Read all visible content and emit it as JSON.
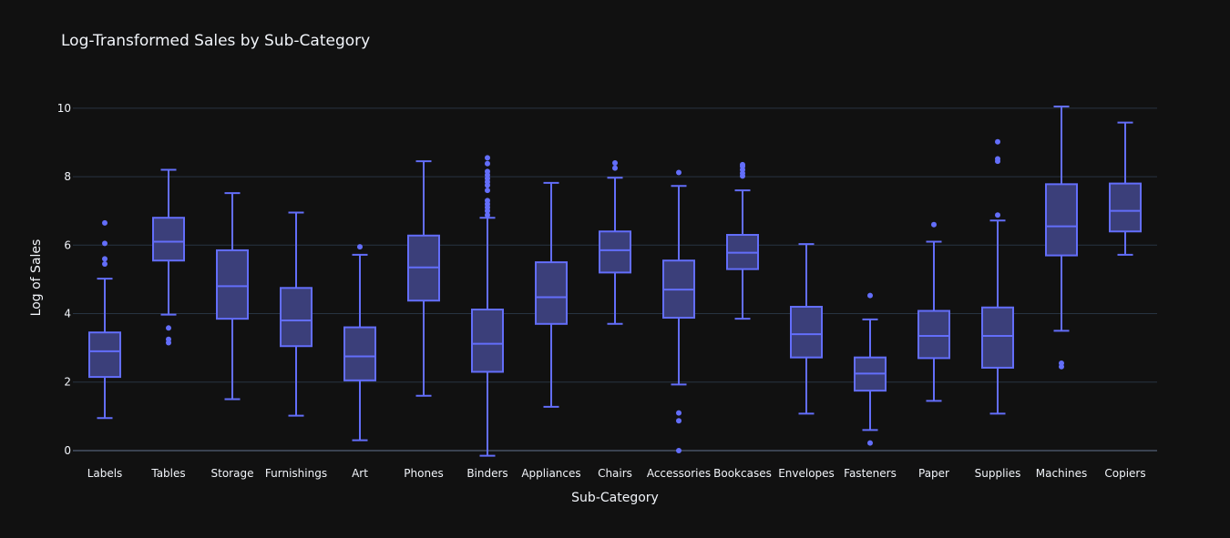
{
  "chart_data": {
    "type": "box",
    "title": "Log-Transformed Sales by Sub-Category",
    "xlabel": "Sub-Category",
    "ylabel": "Log of Sales",
    "ylim": [
      -0.4,
      10.9
    ],
    "yticks": [
      0,
      2,
      4,
      6,
      8,
      10
    ],
    "grid": true,
    "legend": "none",
    "colors": {
      "background": "#111111",
      "grid": "#283442",
      "zeroline": "#3a4250",
      "box_line": "#636efa",
      "box_fill": "#3b3f7a",
      "text": "#f2f5fa"
    },
    "categories": [
      "Labels",
      "Tables",
      "Storage",
      "Furnishings",
      "Art",
      "Phones",
      "Binders",
      "Appliances",
      "Chairs",
      "Accessories",
      "Bookcases",
      "Envelopes",
      "Fasteners",
      "Paper",
      "Supplies",
      "Machines",
      "Copiers"
    ],
    "series": [
      {
        "boxes": [
          {
            "category": "Labels",
            "lower_fence": 0.95,
            "q1": 2.15,
            "median": 2.9,
            "q3": 3.45,
            "upper_fence": 5.02,
            "outliers": [
              5.45,
              5.6,
              6.05,
              6.65
            ]
          },
          {
            "category": "Tables",
            "lower_fence": 3.97,
            "q1": 5.55,
            "median": 6.1,
            "q3": 6.8,
            "upper_fence": 8.2,
            "outliers": [
              3.15,
              3.25,
              3.58
            ]
          },
          {
            "category": "Storage",
            "lower_fence": 1.5,
            "q1": 3.85,
            "median": 4.8,
            "q3": 5.85,
            "upper_fence": 7.52,
            "outliers": []
          },
          {
            "category": "Furnishings",
            "lower_fence": 1.02,
            "q1": 3.05,
            "median": 3.8,
            "q3": 4.75,
            "upper_fence": 6.95,
            "outliers": []
          },
          {
            "category": "Art",
            "lower_fence": 0.3,
            "q1": 2.05,
            "median": 2.75,
            "q3": 3.6,
            "upper_fence": 5.72,
            "outliers": [
              5.95
            ]
          },
          {
            "category": "Phones",
            "lower_fence": 1.6,
            "q1": 4.38,
            "median": 5.35,
            "q3": 6.28,
            "upper_fence": 8.45,
            "outliers": []
          },
          {
            "category": "Binders",
            "lower_fence": -0.15,
            "q1": 2.3,
            "median": 3.12,
            "q3": 4.12,
            "upper_fence": 6.8,
            "outliers": [
              6.88,
              7.0,
              7.1,
              7.2,
              7.3,
              7.6,
              7.75,
              7.85,
              7.95,
              8.05,
              8.15,
              8.38,
              8.55
            ]
          },
          {
            "category": "Appliances",
            "lower_fence": 1.28,
            "q1": 3.7,
            "median": 4.48,
            "q3": 5.5,
            "upper_fence": 7.82,
            "outliers": []
          },
          {
            "category": "Chairs",
            "lower_fence": 3.7,
            "q1": 5.2,
            "median": 5.85,
            "q3": 6.4,
            "upper_fence": 7.97,
            "outliers": [
              8.25,
              8.4
            ]
          },
          {
            "category": "Accessories",
            "lower_fence": 1.93,
            "q1": 3.88,
            "median": 4.7,
            "q3": 5.55,
            "upper_fence": 7.73,
            "outliers": [
              0.0,
              0.87,
              1.1,
              8.12
            ]
          },
          {
            "category": "Bookcases",
            "lower_fence": 3.85,
            "q1": 5.3,
            "median": 5.78,
            "q3": 6.3,
            "upper_fence": 7.6,
            "outliers": [
              8.02,
              8.1,
              8.2,
              8.3,
              8.35
            ]
          },
          {
            "category": "Envelopes",
            "lower_fence": 1.08,
            "q1": 2.72,
            "median": 3.4,
            "q3": 4.2,
            "upper_fence": 6.03,
            "outliers": []
          },
          {
            "category": "Fasteners",
            "lower_fence": 0.6,
            "q1": 1.75,
            "median": 2.25,
            "q3": 2.72,
            "upper_fence": 3.83,
            "outliers": [
              0.22,
              4.53
            ]
          },
          {
            "category": "Paper",
            "lower_fence": 1.45,
            "q1": 2.7,
            "median": 3.35,
            "q3": 4.08,
            "upper_fence": 6.1,
            "outliers": [
              6.6
            ]
          },
          {
            "category": "Supplies",
            "lower_fence": 1.08,
            "q1": 2.42,
            "median": 3.35,
            "q3": 4.18,
            "upper_fence": 6.72,
            "outliers": [
              6.88,
              8.45,
              8.52,
              9.02
            ]
          },
          {
            "category": "Machines",
            "lower_fence": 3.5,
            "q1": 5.7,
            "median": 6.55,
            "q3": 7.78,
            "upper_fence": 10.05,
            "outliers": [
              2.45,
              2.55
            ]
          },
          {
            "category": "Copiers",
            "lower_fence": 5.72,
            "q1": 6.4,
            "median": 7.0,
            "q3": 7.8,
            "upper_fence": 9.58,
            "outliers": []
          }
        ]
      }
    ]
  }
}
